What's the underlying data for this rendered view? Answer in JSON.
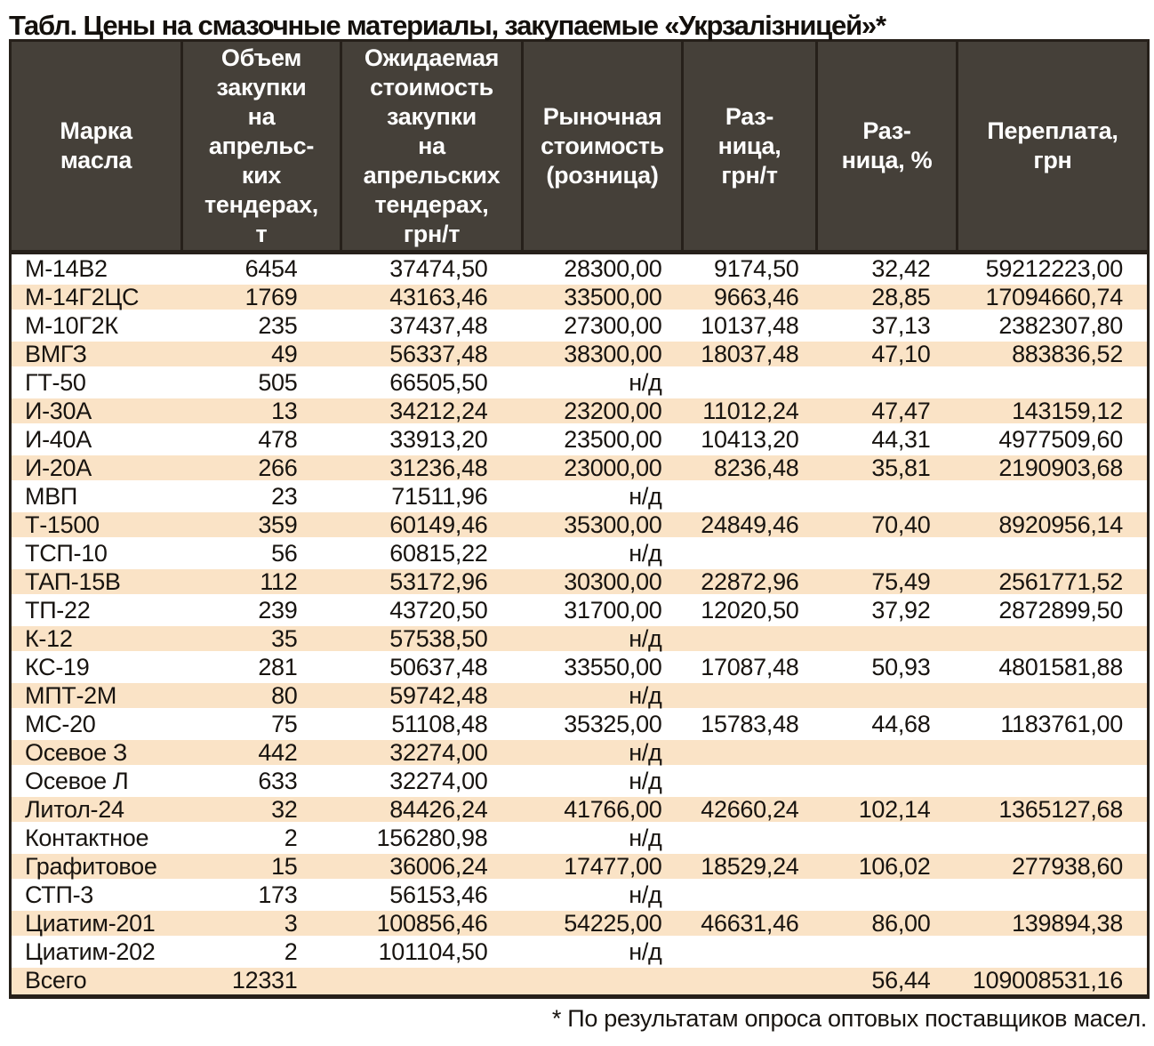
{
  "title": "Табл. Цены на смазочные материалы, закупаемые «Укрзалізницей»*",
  "footnote": "* По результатам опроса оптовых поставщиков масел.",
  "na_label": "н/д",
  "colors": {
    "header_bg": "#454039",
    "header_text": "#ffffff",
    "row_stripe": "#fae3c6",
    "border": "#26201a",
    "body_text": "#181410"
  },
  "table": {
    "headers": [
      "Марка\nмасла",
      "Объем\nзакупки\nна\nапрельс-\nких\nтендерах,\nт",
      "Ожидаемая\nстоимость\nзакупки\nна\nапрельских\nтендерах,\nгрн/т",
      "Рыночная\nстоимость\n(розница)",
      "Раз-\nница,\nгрн/т",
      "Раз-\nница, %",
      "Переплата,\nгрн"
    ],
    "rows": [
      [
        "М-14В2",
        "6454",
        "37474,50",
        "28300,00",
        "9174,50",
        "32,42",
        "59212223,00"
      ],
      [
        "М-14Г2ЦС",
        "1769",
        "43163,46",
        "33500,00",
        "9663,46",
        "28,85",
        "17094660,74"
      ],
      [
        "М-10Г2К",
        "235",
        "37437,48",
        "27300,00",
        "10137,48",
        "37,13",
        "2382307,80"
      ],
      [
        "ВМГЗ",
        "49",
        "56337,48",
        "38300,00",
        "18037,48",
        "47,10",
        "883836,52"
      ],
      [
        "ГТ-50",
        "505",
        "66505,50",
        "н/д",
        "",
        "",
        ""
      ],
      [
        "И-30А",
        "13",
        "34212,24",
        "23200,00",
        "11012,24",
        "47,47",
        "143159,12"
      ],
      [
        "И-40А",
        "478",
        "33913,20",
        "23500,00",
        "10413,20",
        "44,31",
        "4977509,60"
      ],
      [
        "И-20А",
        "266",
        "31236,48",
        "23000,00",
        "8236,48",
        "35,81",
        "2190903,68"
      ],
      [
        "МВП",
        "23",
        "71511,96",
        "н/д",
        "",
        "",
        ""
      ],
      [
        "Т-1500",
        "359",
        "60149,46",
        "35300,00",
        "24849,46",
        "70,40",
        "8920956,14"
      ],
      [
        "ТСП-10",
        "56",
        "60815,22",
        "н/д",
        "",
        "",
        ""
      ],
      [
        "ТАП-15В",
        "112",
        "53172,96",
        "30300,00",
        "22872,96",
        "75,49",
        "2561771,52"
      ],
      [
        "ТП-22",
        "239",
        "43720,50",
        "31700,00",
        "12020,50",
        "37,92",
        "2872899,50"
      ],
      [
        "К-12",
        "35",
        "57538,50",
        "н/д",
        "",
        "",
        ""
      ],
      [
        "КС-19",
        "281",
        "50637,48",
        "33550,00",
        "17087,48",
        "50,93",
        "4801581,88"
      ],
      [
        "МПТ-2М",
        "80",
        "59742,48",
        "н/д",
        "",
        "",
        ""
      ],
      [
        "МС-20",
        "75",
        "51108,48",
        "35325,00",
        "15783,48",
        "44,68",
        "1183761,00"
      ],
      [
        "Осевое З",
        "442",
        "32274,00",
        "н/д",
        "",
        "",
        ""
      ],
      [
        "Осевое Л",
        "633",
        "32274,00",
        "н/д",
        "",
        "",
        ""
      ],
      [
        "Литол-24",
        "32",
        "84426,24",
        "41766,00",
        "42660,24",
        "102,14",
        "1365127,68"
      ],
      [
        "Контактное",
        "2",
        "156280,98",
        "н/д",
        "",
        "",
        ""
      ],
      [
        "Графитовое",
        "15",
        "36006,24",
        "17477,00",
        "18529,24",
        "106,02",
        "277938,60"
      ],
      [
        "СТП-3",
        "173",
        "56153,46",
        "н/д",
        "",
        "",
        ""
      ],
      [
        "Циатим-201",
        "3",
        "100856,46",
        "54225,00",
        "46631,46",
        "86,00",
        "139894,38"
      ],
      [
        "Циатим-202",
        "2",
        "101104,50",
        "н/д",
        "",
        "",
        ""
      ],
      [
        "Всего",
        "12331",
        "",
        "",
        "",
        "56,44",
        "109008531,16"
      ]
    ]
  }
}
